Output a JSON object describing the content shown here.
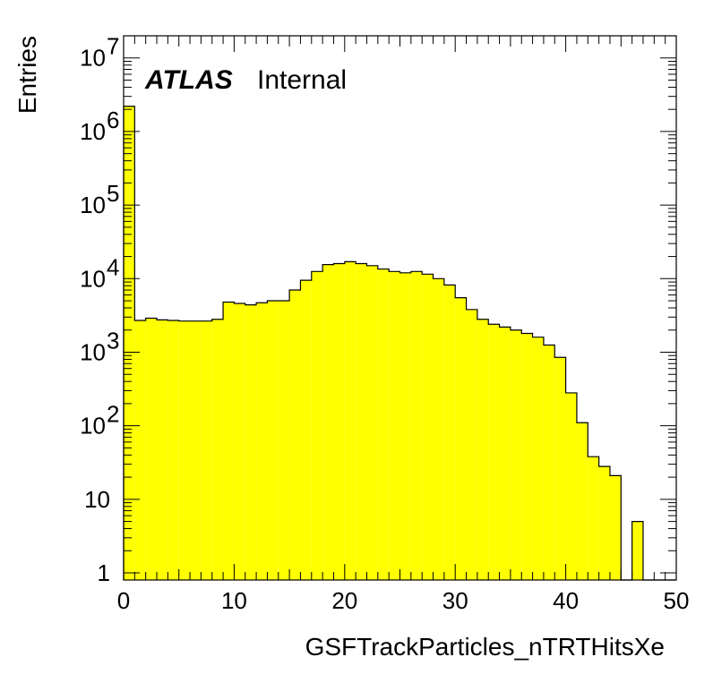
{
  "chart_data": {
    "type": "bar",
    "histogram": true,
    "fill_color": "#ffff00",
    "line_color": "#000000",
    "xlabel": "GSFTrackParticles_nTRTHitsXe",
    "ylabel": "Entries",
    "xlim": [
      0,
      50
    ],
    "ylim": [
      0.8,
      20000000
    ],
    "y_scale": "log",
    "label_main": "ATLAS",
    "label_sub": "Internal",
    "x_ticks": [
      "0",
      "10",
      "20",
      "30",
      "40",
      "50"
    ],
    "y_ticks": [
      {
        "value": 1,
        "base": "1",
        "exp": ""
      },
      {
        "value": 10,
        "base": "10",
        "exp": ""
      },
      {
        "value": 100,
        "base": "10",
        "exp": "2"
      },
      {
        "value": 1000,
        "base": "10",
        "exp": "3"
      },
      {
        "value": 10000,
        "base": "10",
        "exp": "4"
      },
      {
        "value": 100000,
        "base": "10",
        "exp": "5"
      },
      {
        "value": 1000000,
        "base": "10",
        "exp": "6"
      },
      {
        "value": 10000000,
        "base": "10",
        "exp": "7"
      }
    ],
    "bin_edges_start": 0,
    "bin_width": 1,
    "values": [
      2200000,
      2700,
      2900,
      2750,
      2700,
      2650,
      2650,
      2650,
      2800,
      4800,
      4600,
      4400,
      4700,
      5000,
      5000,
      7000,
      9500,
      12500,
      15500,
      16000,
      17000,
      16000,
      15000,
      13500,
      12500,
      12000,
      12500,
      11500,
      10000,
      8200,
      5500,
      3800,
      2800,
      2400,
      2200,
      2000,
      1800,
      1600,
      1250,
      850,
      280,
      110,
      38,
      28,
      21,
      0,
      5,
      0,
      0,
      0
    ]
  }
}
